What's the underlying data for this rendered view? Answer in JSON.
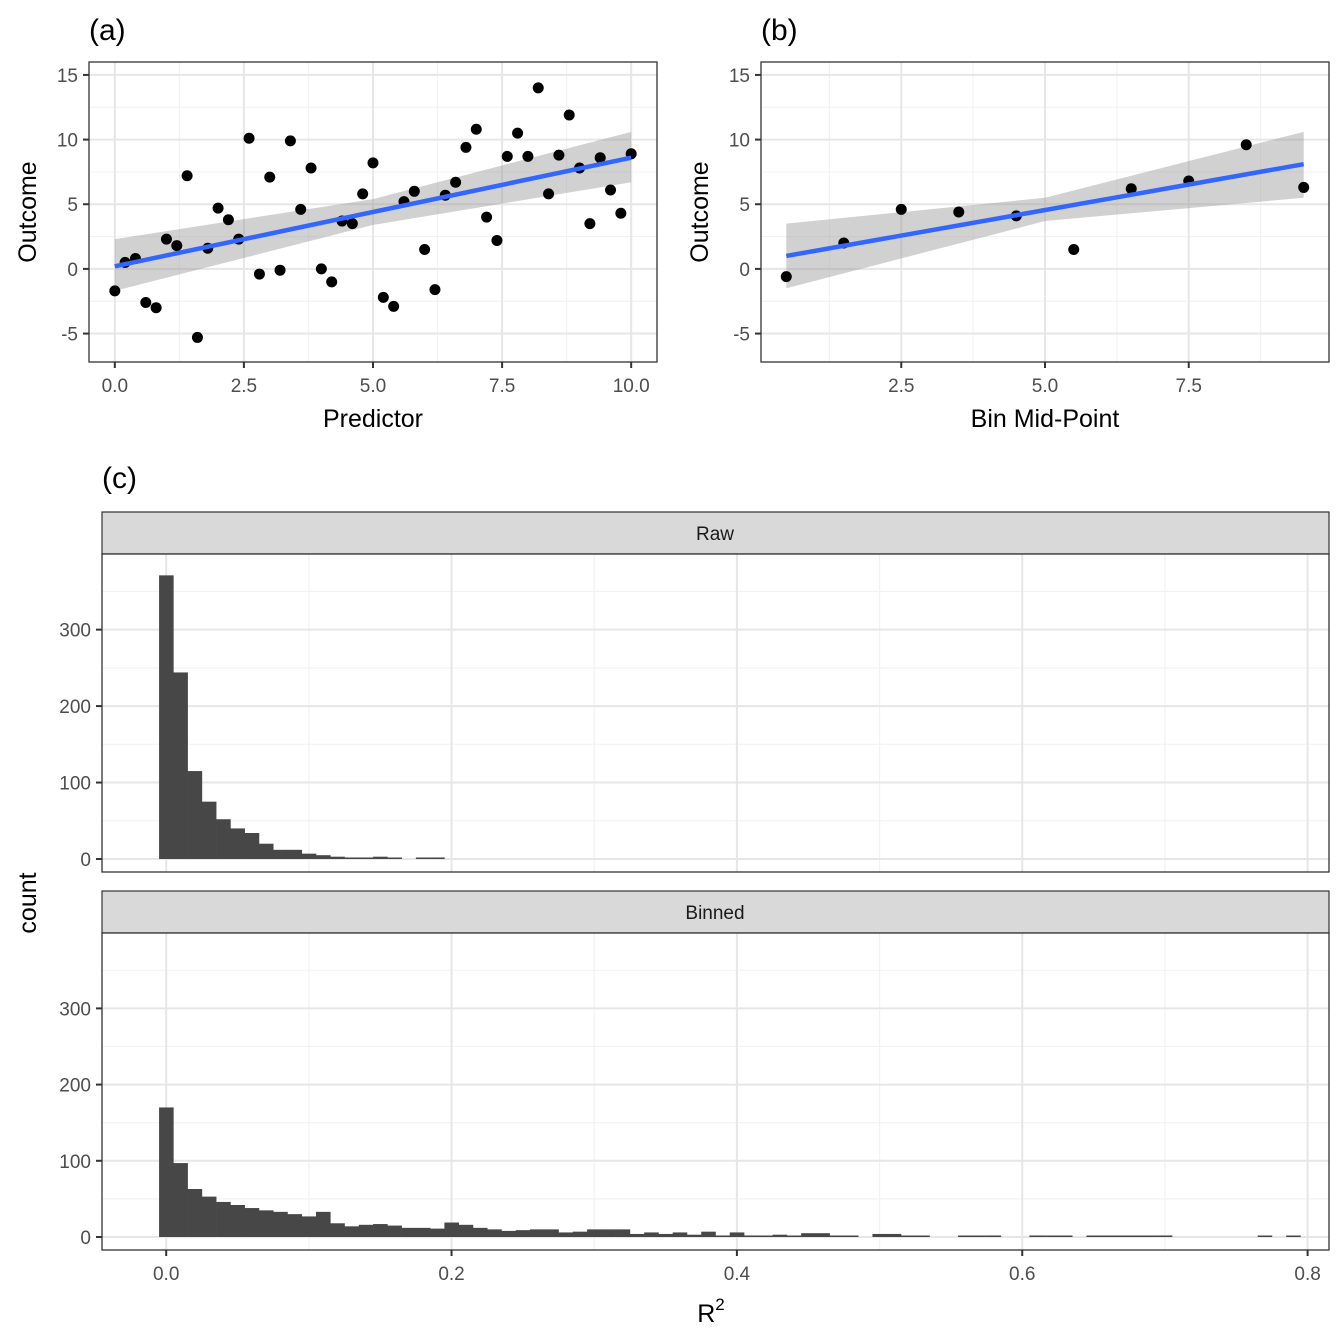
{
  "chart_data": [
    {
      "panel": "(a)",
      "type": "scatter",
      "xlabel": "Predictor",
      "ylabel": "Outcome",
      "xlim": [
        -0.5,
        10.5
      ],
      "ylim": [
        -7.2,
        16.0
      ],
      "xticks": [
        0,
        2.5,
        5,
        7.5,
        10
      ],
      "xtick_labels": [
        "0.0",
        "2.5",
        "5.0",
        "7.5",
        "10.0"
      ],
      "yticks": [
        -5,
        0,
        5,
        10,
        15
      ],
      "ytick_labels": [
        "-5",
        "0",
        "5",
        "10",
        "15"
      ],
      "grid": true,
      "x": [
        0,
        0.2,
        0.4,
        0.6,
        0.8,
        1.0,
        1.2,
        1.4,
        1.6,
        1.8,
        2.0,
        2.2,
        2.4,
        2.6,
        2.8,
        3.0,
        3.2,
        3.4,
        3.6,
        3.8,
        4.0,
        4.2,
        4.4,
        4.6,
        4.8,
        5.0,
        5.2,
        5.4,
        5.6,
        5.8,
        6.0,
        6.2,
        6.4,
        6.6,
        6.8,
        7.0,
        7.2,
        7.4,
        7.6,
        7.8,
        8.0,
        8.2,
        8.4,
        8.6,
        8.8,
        9.0,
        9.2,
        9.4,
        9.6,
        9.8,
        10.0
      ],
      "y": [
        -1.7,
        0.5,
        0.8,
        -2.6,
        -3.0,
        2.3,
        1.8,
        7.2,
        -5.3,
        1.6,
        4.7,
        3.8,
        2.3,
        10.1,
        -0.4,
        7.1,
        -0.1,
        9.9,
        4.6,
        7.8,
        -0.0,
        -1.0,
        3.7,
        3.5,
        5.8,
        8.2,
        -2.2,
        -2.9,
        5.2,
        6.0,
        1.5,
        -1.6,
        5.7,
        6.7,
        9.4,
        10.8,
        4.0,
        2.2,
        8.7,
        10.5,
        8.7,
        14.0,
        5.8,
        8.8,
        11.9,
        7.8,
        3.5,
        8.6,
        6.1,
        4.3,
        8.9
      ],
      "fit": {
        "type": "lm",
        "x": [
          0,
          10
        ],
        "y": [
          0.2,
          8.6
        ],
        "ci_lower": [
          -1.7,
          6.7
        ],
        "ci_upper": [
          2.3,
          10.6
        ],
        "ci_x_mid": 5,
        "ci_mid": [
          3.4,
          5.4
        ]
      },
      "fit_color": "#3366FF",
      "ci_color": "#999999"
    },
    {
      "panel": "(b)",
      "type": "scatter",
      "xlabel": "Bin Mid-Point",
      "ylabel": "Outcome",
      "xlim": [
        0.06,
        9.94
      ],
      "ylim": [
        -7.2,
        16.0
      ],
      "xticks": [
        2.5,
        5,
        7.5
      ],
      "xtick_labels": [
        "2.5",
        "5.0",
        "7.5"
      ],
      "yticks": [
        -5,
        0,
        5,
        10,
        15
      ],
      "ytick_labels": [
        "-5",
        "0",
        "5",
        "10",
        "15"
      ],
      "grid": true,
      "x": [
        0.5,
        1.5,
        2.5,
        3.5,
        4.5,
        5.5,
        6.5,
        7.5,
        8.5,
        9.5
      ],
      "y": [
        -0.6,
        2.0,
        4.6,
        4.4,
        4.1,
        1.5,
        6.2,
        6.8,
        9.6,
        6.3
      ],
      "fit": {
        "type": "lm",
        "x": [
          0.5,
          9.5
        ],
        "y": [
          1.0,
          8.1
        ],
        "ci_lower": [
          -1.5,
          5.5
        ],
        "ci_upper": [
          3.5,
          10.6
        ],
        "ci_x_mid": 5,
        "ci_mid": [
          3.7,
          5.5
        ]
      },
      "fit_color": "#3366FF",
      "ci_color": "#999999"
    },
    {
      "panel": "(c)",
      "type": "bar",
      "subtype": "histogram",
      "xlabel": "R",
      "xlabel_superscript": "2",
      "ylabel": "count",
      "bin_width": 0.01,
      "bin_start": -0.005,
      "xlim": [
        -0.045,
        0.815
      ],
      "ylim": [
        0,
        395
      ],
      "xticks": [
        0.0,
        0.2,
        0.4,
        0.6,
        0.8
      ],
      "xtick_labels": [
        "0.0",
        "0.2",
        "0.4",
        "0.6",
        "0.8"
      ],
      "yticks": [
        0,
        100,
        200,
        300
      ],
      "ytick_labels": [
        "0",
        "100",
        "200",
        "300"
      ],
      "grid": true,
      "bar_color": "#474747",
      "facets": [
        {
          "name": "Raw",
          "values": [
            371,
            244,
            115,
            75,
            52,
            40,
            34,
            20,
            12,
            12,
            7,
            5,
            3,
            2,
            2,
            3,
            1,
            0,
            1,
            2
          ]
        },
        {
          "name": "Binned",
          "values": [
            170,
            97,
            63,
            53,
            46,
            42,
            38,
            35,
            33,
            30,
            27,
            33,
            18,
            14,
            16,
            17,
            15,
            12,
            12,
            11,
            19,
            16,
            12,
            10,
            8,
            9,
            10,
            10,
            6,
            7,
            10,
            10,
            10,
            4,
            6,
            4,
            6,
            3,
            7,
            2,
            6,
            2,
            1,
            3,
            1,
            5,
            5,
            1,
            1,
            0,
            4,
            4,
            1,
            1,
            0,
            0,
            1,
            1,
            2,
            0,
            0,
            2,
            1,
            1,
            0,
            1,
            1,
            1,
            1,
            1,
            2,
            0,
            0,
            0,
            0,
            0,
            0,
            1,
            0,
            1,
            0
          ]
        }
      ]
    }
  ],
  "labels": {
    "tag_a": "(a)",
    "tag_b": "(b)",
    "tag_c": "(c)"
  }
}
